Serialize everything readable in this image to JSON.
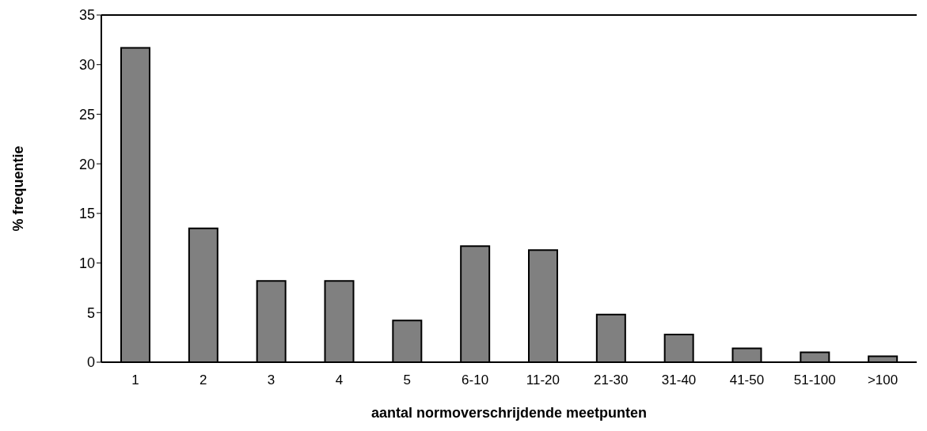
{
  "chart_data": {
    "type": "bar",
    "xlabel": "aantal normoverschrijdende meetpunten",
    "ylabel": "% frequentie",
    "categories": [
      "1",
      "2",
      "3",
      "4",
      "5",
      "6-10",
      "11-20",
      "21-30",
      "31-40",
      "41-50",
      "51-100",
      ">100"
    ],
    "values": [
      31.7,
      13.5,
      8.2,
      8.2,
      4.2,
      11.7,
      11.3,
      4.8,
      2.8,
      1.4,
      1.0,
      0.6
    ],
    "color": "#808080",
    "ylim": [
      0,
      35
    ],
    "yticks": [
      0,
      5,
      10,
      15,
      20,
      25,
      30,
      35
    ],
    "grid": false,
    "legend": false
  }
}
